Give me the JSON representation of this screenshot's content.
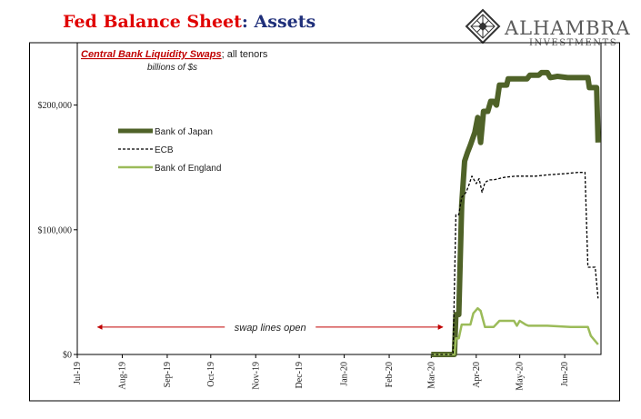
{
  "header": {
    "title_part1": "Fed Balance Sheet",
    "title_part2": ": Assets",
    "brand_name": "ALHAMBRA",
    "brand_sub": "INVESTMENTS",
    "logo_icon": "diamond-lattice-icon"
  },
  "colors": {
    "title_red": "#e00000",
    "title_blue": "#1f2f7a",
    "boj": "#4f6228",
    "ecb": "#000000",
    "boe": "#9bbb59",
    "annotation": "#c00000"
  },
  "chart_data": {
    "type": "line",
    "title": "Central Bank Liquidity Swaps",
    "title_suffix": "; all tenors",
    "units": "billions of $s",
    "ylabel": "",
    "xlabel": "",
    "ylim": [
      0,
      250000
    ],
    "xlim": [
      "2019-07-01",
      "2020-06-26"
    ],
    "y_ticks": [
      {
        "value": 0,
        "label": "$0"
      },
      {
        "value": 100000,
        "label": "$100,000"
      },
      {
        "value": 200000,
        "label": "$200,000"
      }
    ],
    "x_ticks": [
      {
        "date": "2019-07-01",
        "label": "Jul-19"
      },
      {
        "date": "2019-08-01",
        "label": "Aug-19"
      },
      {
        "date": "2019-09-01",
        "label": "Sep-19"
      },
      {
        "date": "2019-10-01",
        "label": "Oct-19"
      },
      {
        "date": "2019-11-01",
        "label": "Nov-19"
      },
      {
        "date": "2019-12-01",
        "label": "Dec-19"
      },
      {
        "date": "2020-01-01",
        "label": "Jan-20"
      },
      {
        "date": "2020-02-01",
        "label": "Feb-20"
      },
      {
        "date": "2020-03-01",
        "label": "Mar-20"
      },
      {
        "date": "2020-04-01",
        "label": "Apr-20"
      },
      {
        "date": "2020-05-01",
        "label": "May-20"
      },
      {
        "date": "2020-06-01",
        "label": "Jun-20"
      }
    ],
    "grid": false,
    "legend_position": "upper-left",
    "series": [
      {
        "name": "Bank of Japan",
        "points": [
          [
            "2020-03-01",
            0
          ],
          [
            "2020-03-17",
            0
          ],
          [
            "2020-03-18",
            32000
          ],
          [
            "2020-03-20",
            32000
          ],
          [
            "2020-03-22",
            120000
          ],
          [
            "2020-03-24",
            155000
          ],
          [
            "2020-03-26",
            162000
          ],
          [
            "2020-03-28",
            168000
          ],
          [
            "2020-03-31",
            178000
          ],
          [
            "2020-04-02",
            190000
          ],
          [
            "2020-04-04",
            170000
          ],
          [
            "2020-04-06",
            195000
          ],
          [
            "2020-04-09",
            195000
          ],
          [
            "2020-04-11",
            203000
          ],
          [
            "2020-04-13",
            203000
          ],
          [
            "2020-04-15",
            200000
          ],
          [
            "2020-04-17",
            216000
          ],
          [
            "2020-04-22",
            216000
          ],
          [
            "2020-04-23",
            221000
          ],
          [
            "2020-05-06",
            221000
          ],
          [
            "2020-05-08",
            224000
          ],
          [
            "2020-05-14",
            224000
          ],
          [
            "2020-05-16",
            226000
          ],
          [
            "2020-05-20",
            226000
          ],
          [
            "2020-05-22",
            222000
          ],
          [
            "2020-05-27",
            223000
          ],
          [
            "2020-06-03",
            222000
          ],
          [
            "2020-06-17",
            222000
          ],
          [
            "2020-06-18",
            214000
          ],
          [
            "2020-06-23",
            214000
          ],
          [
            "2020-06-24",
            170000
          ]
        ]
      },
      {
        "name": "ECB",
        "points": [
          [
            "2020-03-01",
            0
          ],
          [
            "2020-03-16",
            0
          ],
          [
            "2020-03-18",
            112000
          ],
          [
            "2020-03-20",
            112000
          ],
          [
            "2020-03-22",
            126000
          ],
          [
            "2020-03-25",
            130000
          ],
          [
            "2020-03-27",
            136000
          ],
          [
            "2020-03-29",
            143000
          ],
          [
            "2020-04-01",
            137000
          ],
          [
            "2020-04-03",
            141000
          ],
          [
            "2020-04-05",
            130000
          ],
          [
            "2020-04-07",
            138000
          ],
          [
            "2020-04-10",
            140000
          ],
          [
            "2020-04-13",
            140000
          ],
          [
            "2020-04-20",
            142000
          ],
          [
            "2020-04-28",
            143000
          ],
          [
            "2020-05-05",
            143000
          ],
          [
            "2020-05-12",
            143000
          ],
          [
            "2020-05-20",
            144000
          ],
          [
            "2020-06-01",
            145000
          ],
          [
            "2020-06-10",
            146000
          ],
          [
            "2020-06-15",
            146000
          ],
          [
            "2020-06-17",
            70000
          ],
          [
            "2020-06-22",
            70000
          ],
          [
            "2020-06-24",
            45000
          ]
        ]
      },
      {
        "name": "Bank of England",
        "points": [
          [
            "2020-03-01",
            0
          ],
          [
            "2020-03-17",
            0
          ],
          [
            "2020-03-18",
            13000
          ],
          [
            "2020-03-20",
            13000
          ],
          [
            "2020-03-22",
            24000
          ],
          [
            "2020-03-28",
            24000
          ],
          [
            "2020-03-30",
            33000
          ],
          [
            "2020-04-02",
            37000
          ],
          [
            "2020-04-04",
            35000
          ],
          [
            "2020-04-07",
            22000
          ],
          [
            "2020-04-13",
            22000
          ],
          [
            "2020-04-17",
            27000
          ],
          [
            "2020-04-27",
            27000
          ],
          [
            "2020-04-29",
            23000
          ],
          [
            "2020-05-01",
            27000
          ],
          [
            "2020-05-05",
            24000
          ],
          [
            "2020-05-07",
            23000
          ],
          [
            "2020-05-20",
            23000
          ],
          [
            "2020-06-05",
            22000
          ],
          [
            "2020-06-17",
            22000
          ],
          [
            "2020-06-19",
            15000
          ],
          [
            "2020-06-24",
            8000
          ]
        ]
      }
    ],
    "annotations": [
      {
        "text": "swap lines open",
        "from": "2019-07-15",
        "to": "2020-03-09",
        "y": 22000
      }
    ]
  }
}
